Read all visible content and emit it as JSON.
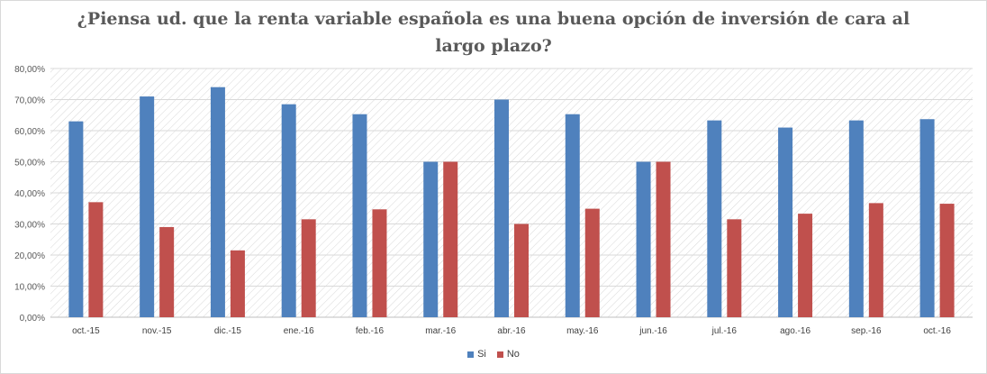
{
  "chart_data": {
    "type": "bar",
    "title_lines": [
      "¿Piensa ud. que la renta variable española es una buena opción de inversión de cara al",
      "largo plazo?"
    ],
    "categories": [
      "oct.-15",
      "nov.-15",
      "dic.-15",
      "ene.-16",
      "feb.-16",
      "mar.-16",
      "abr.-16",
      "may.-16",
      "jun.-16",
      "jul.-16",
      "ago.-16",
      "sep.-16",
      "oct.-16"
    ],
    "series": [
      {
        "name": "Si",
        "color": "#4f81bd",
        "values": [
          63.0,
          71.0,
          74.0,
          68.5,
          65.3,
          50.0,
          70.0,
          65.3,
          50.0,
          63.3,
          61.0,
          63.3,
          63.7
        ]
      },
      {
        "name": "No",
        "color": "#c0504d",
        "values": [
          37.0,
          29.0,
          21.5,
          31.5,
          34.7,
          50.0,
          30.0,
          34.9,
          50.0,
          31.5,
          33.3,
          36.7,
          36.5
        ]
      }
    ],
    "y_ticks": [
      "0,00%",
      "10,00%",
      "20,00%",
      "30,00%",
      "40,00%",
      "50,00%",
      "60,00%",
      "70,00%",
      "80,00%"
    ],
    "ylim": [
      0,
      80
    ],
    "legend_position": "bottom",
    "grid": true
  }
}
